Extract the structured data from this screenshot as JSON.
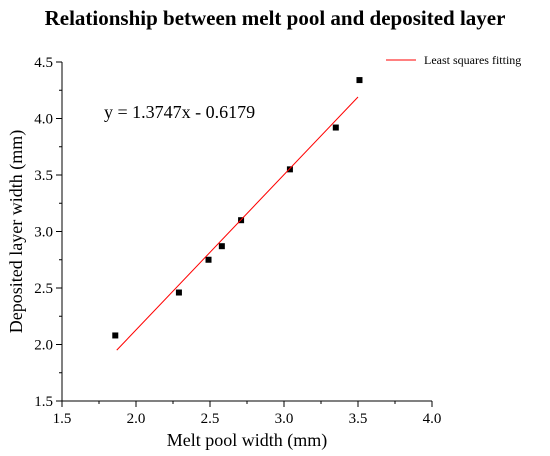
{
  "chart_data": {
    "type": "scatter",
    "title": "Relationship between melt pool and deposited layer",
    "xlabel": "Melt pool width (mm)",
    "ylabel": "Deposited layer width (mm)",
    "xlim": [
      1.5,
      4.0
    ],
    "ylim": [
      1.5,
      4.5
    ],
    "x_ticks": [
      "1.5",
      "2.0",
      "2.5",
      "3.0",
      "3.5",
      "4.0"
    ],
    "y_ticks": [
      "1.5",
      "2.0",
      "2.5",
      "3.0",
      "3.5",
      "4.0",
      "4.5"
    ],
    "grid": false,
    "legend_position": "top-right",
    "series": [
      {
        "kind": "points",
        "marker": "square",
        "color": "#000000",
        "x": [
          1.86,
          2.29,
          2.49,
          2.58,
          2.71,
          3.04,
          3.35,
          3.51
        ],
        "y": [
          2.08,
          2.46,
          2.75,
          2.87,
          3.1,
          3.55,
          3.92,
          4.34
        ]
      },
      {
        "kind": "line",
        "name": "Least squares fitting",
        "color": "#ff0000",
        "x": [
          1.87,
          3.5
        ],
        "y": [
          1.95,
          4.19
        ]
      }
    ],
    "annotations": [
      {
        "text": "y = 1.3747x - 0.6179"
      }
    ]
  }
}
